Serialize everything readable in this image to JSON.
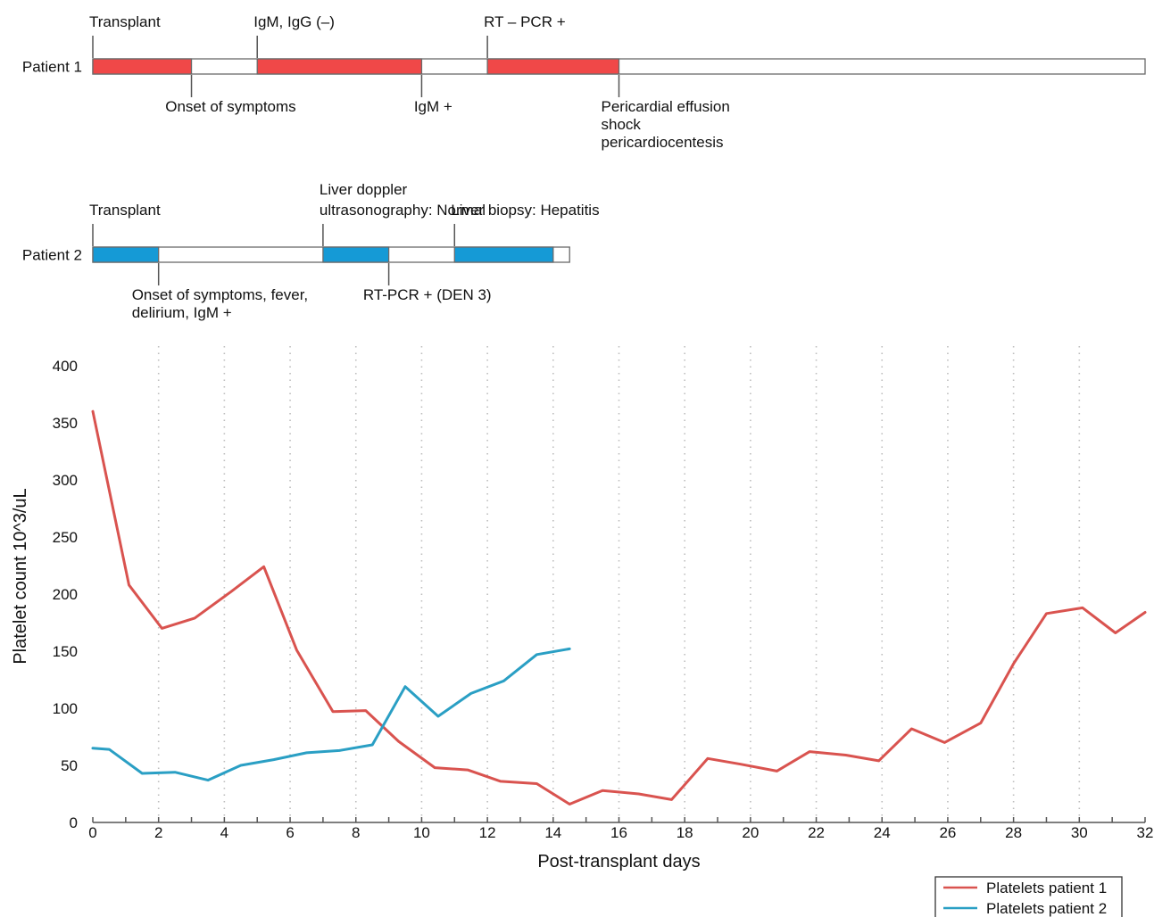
{
  "colors": {
    "patient1": "#d9534f",
    "patient2": "#2a9fc4",
    "red_bar": "#f04848",
    "blue_bar": "#159ad6"
  },
  "timelines": [
    {
      "label": "Patient 1",
      "end_day": 32,
      "filled_segments": [
        [
          0,
          3
        ],
        [
          5,
          10
        ],
        [
          12,
          16
        ]
      ],
      "events": [
        {
          "day": 0,
          "side": "top",
          "lines": [
            "Transplant"
          ]
        },
        {
          "day": 5,
          "side": "top",
          "lines": [
            "IgM, IgG (–)"
          ]
        },
        {
          "day": 12,
          "side": "top",
          "lines": [
            "RT – PCR +"
          ]
        },
        {
          "day": 3,
          "side": "bottom",
          "lines": [
            "Onset of symptoms"
          ]
        },
        {
          "day": 10,
          "side": "bottom",
          "lines": [
            "IgM +"
          ]
        },
        {
          "day": 16,
          "side": "bottom",
          "lines": [
            "Pericardial effusion",
            "shock",
            "pericardiocentesis"
          ]
        }
      ]
    },
    {
      "label": "Patient 2",
      "end_day": 14.5,
      "filled_segments": [
        [
          0,
          2
        ],
        [
          7,
          9
        ],
        [
          11,
          14
        ]
      ],
      "events": [
        {
          "day": 0,
          "side": "top",
          "lines": [
            "Transplant"
          ]
        },
        {
          "day": 7,
          "side": "top",
          "lines": [
            "Liver doppler",
            "ultrasonography: Normal"
          ]
        },
        {
          "day": 11,
          "side": "top",
          "lines": [
            "Liver biopsy: Hepatitis"
          ]
        },
        {
          "day": 2,
          "side": "bottom",
          "lines": [
            "Onset of symptoms, fever,",
            "delirium, IgM +"
          ]
        },
        {
          "day": 9,
          "side": "bottom",
          "lines": [
            "RT-PCR + (DEN 3)"
          ]
        }
      ]
    }
  ],
  "chart_data": {
    "type": "line",
    "xlabel": "Post-transplant days",
    "ylabel": "Platelet count 10^3/uL",
    "xlim": [
      0,
      32
    ],
    "ylim": [
      0,
      400
    ],
    "x_ticks": [
      0,
      2,
      4,
      6,
      8,
      10,
      12,
      14,
      16,
      18,
      20,
      22,
      24,
      26,
      28,
      30,
      32
    ],
    "y_ticks": [
      0,
      50,
      100,
      150,
      200,
      250,
      300,
      350,
      400
    ],
    "grid": "vertical dotted",
    "legend_position": "bottom-right",
    "series": [
      {
        "name": "Platelets patient 1",
        "color": "#d9534f",
        "points": [
          [
            0,
            360
          ],
          [
            1.1,
            208
          ],
          [
            2.1,
            170
          ],
          [
            3.1,
            179
          ],
          [
            4.2,
            202
          ],
          [
            5.2,
            224
          ],
          [
            6.2,
            151
          ],
          [
            7.3,
            97
          ],
          [
            8.3,
            98
          ],
          [
            9.3,
            71
          ],
          [
            10.4,
            48
          ],
          [
            11.4,
            46
          ],
          [
            12.4,
            36
          ],
          [
            13.5,
            34
          ],
          [
            14.5,
            16
          ],
          [
            15.5,
            28
          ],
          [
            16.6,
            25
          ],
          [
            17.6,
            20
          ],
          [
            18.7,
            56
          ],
          [
            19.7,
            51
          ],
          [
            20.8,
            45
          ],
          [
            21.8,
            62
          ],
          [
            22.9,
            59
          ],
          [
            23.9,
            54
          ],
          [
            24.9,
            82
          ],
          [
            25.9,
            70
          ],
          [
            27,
            87
          ],
          [
            28,
            139
          ],
          [
            29,
            183
          ],
          [
            30.1,
            188
          ],
          [
            31.1,
            166
          ],
          [
            32,
            184
          ]
        ]
      },
      {
        "name": "Platelets patient 2",
        "color": "#2a9fc4",
        "points": [
          [
            0,
            65
          ],
          [
            0.5,
            64
          ],
          [
            1.5,
            43
          ],
          [
            2.5,
            44
          ],
          [
            3.5,
            37
          ],
          [
            4.5,
            50
          ],
          [
            5.5,
            55
          ],
          [
            6.5,
            61
          ],
          [
            7.5,
            63
          ],
          [
            8.5,
            68
          ],
          [
            9.5,
            119
          ],
          [
            10.5,
            93
          ],
          [
            11.5,
            113
          ],
          [
            12.5,
            124
          ],
          [
            13.5,
            147
          ],
          [
            14.5,
            152
          ]
        ]
      }
    ]
  }
}
